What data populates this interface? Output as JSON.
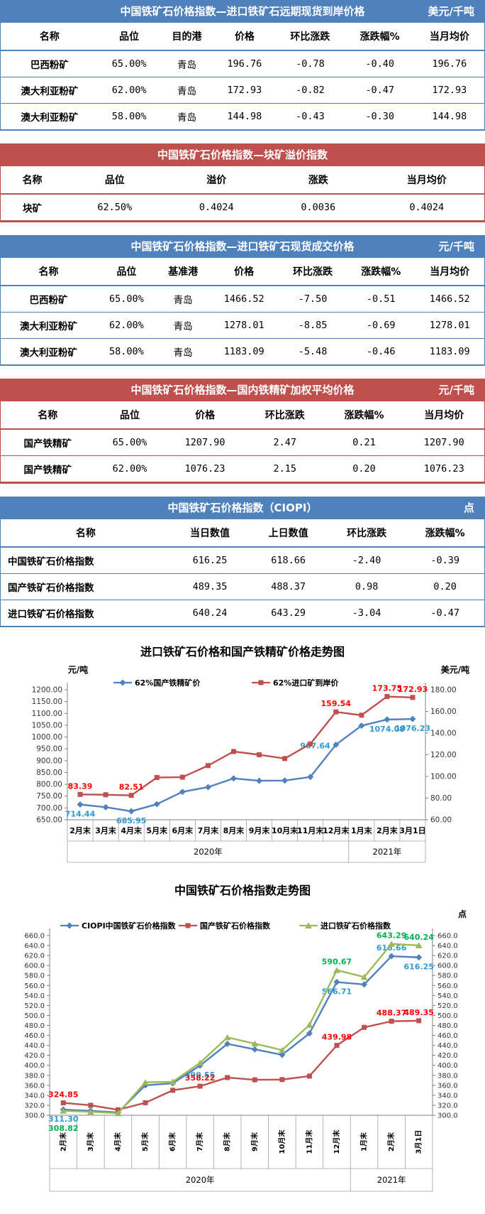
{
  "tables": [
    {
      "theme": "blue",
      "title": "中国铁矿石价格指数—进口铁矿石远期现货到岸价格",
      "unit": "美元/千吨",
      "columns": [
        "名称",
        "品位",
        "目的港",
        "价格",
        "环比涨跌",
        "涨跌幅%",
        "当月均价"
      ],
      "rows": [
        [
          "巴西粉矿",
          "65.00%",
          "青岛",
          "196.76",
          "-0.78",
          "-0.40",
          "196.76"
        ],
        [
          "澳大利亚粉矿",
          "62.00%",
          "青岛",
          "172.93",
          "-0.82",
          "-0.47",
          "172.93"
        ],
        [
          "澳大利亚粉矿",
          "58.00%",
          "青岛",
          "144.98",
          "-0.43",
          "-0.30",
          "144.98"
        ]
      ]
    },
    {
      "theme": "red",
      "title": "中国铁矿石价格指数—块矿溢价指数",
      "unit": "",
      "columns": [
        "名称",
        "品位",
        "溢价",
        "涨跌",
        "当月均价"
      ],
      "rows": [
        [
          "块矿",
          "62.50%",
          "0.4024",
          "0.0036",
          "0.4024"
        ]
      ]
    },
    {
      "theme": "blue",
      "title": "中国铁矿石价格指数—进口铁矿石现货成交价格",
      "unit": "元/千吨",
      "columns": [
        "名称",
        "品位",
        "基准港",
        "价格",
        "环比涨跌",
        "涨跌幅%",
        "当月均价"
      ],
      "rows": [
        [
          "巴西粉矿",
          "65.00%",
          "青岛",
          "1466.52",
          "-7.50",
          "-0.51",
          "1466.52"
        ],
        [
          "澳大利亚粉矿",
          "62.00%",
          "青岛",
          "1278.01",
          "-8.85",
          "-0.69",
          "1278.01"
        ],
        [
          "澳大利亚粉矿",
          "58.00%",
          "青岛",
          "1183.09",
          "-5.48",
          "-0.46",
          "1183.09"
        ]
      ]
    },
    {
      "theme": "red",
      "title": "中国铁矿石价格指数—国内铁精矿加权平均价格",
      "unit": "元/千吨",
      "columns": [
        "名称",
        "品位",
        "价格",
        "环比涨跌",
        "涨跌幅%",
        "当月均价"
      ],
      "rows": [
        [
          "国产铁精矿",
          "65.00%",
          "1207.90",
          "2.47",
          "0.21",
          "1207.90"
        ],
        [
          "国产铁精矿",
          "62.00%",
          "1076.23",
          "2.15",
          "0.20",
          "1076.23"
        ]
      ]
    },
    {
      "theme": "blue",
      "title": "中国铁矿石价格指数（CIOPI）",
      "unit": "点",
      "columns": [
        "名称",
        "当日数值",
        "上日数值",
        "环比涨跌",
        "涨跌幅%"
      ],
      "rows": [
        [
          "中国铁矿石价格指数",
          "616.25",
          "618.66",
          "-2.40",
          "-0.39"
        ],
        [
          "国产铁矿石价格指数",
          "489.35",
          "488.37",
          "0.98",
          "0.20"
        ],
        [
          "进口铁矿石价格指数",
          "640.24",
          "643.29",
          "-3.04",
          "-0.47"
        ]
      ]
    }
  ],
  "chart_data": [
    {
      "type": "line",
      "title": "进口铁矿石价格和国产铁精矿价格走势图",
      "unit_left": "元/吨",
      "unit_right": "美元/吨",
      "legend_position": "top",
      "grid": false,
      "categories": [
        "2月末",
        "3月末",
        "4月末",
        "5月末",
        "6月末",
        "7月末",
        "8月末",
        "9月末",
        "10月末",
        "11月末",
        "12月末",
        "1月末",
        "2月末",
        "3月1日"
      ],
      "year_groups": [
        {
          "label": "2020年",
          "span": 11
        },
        {
          "label": "2021年",
          "span": 3
        }
      ],
      "left_axis": {
        "min": 650,
        "max": 1200,
        "step": 50,
        "decimals": 2
      },
      "right_axis": {
        "min": 60,
        "max": 180,
        "step": 20,
        "decimals": 2
      },
      "series": [
        {
          "name": "62%国产铁精矿价",
          "axis": "left",
          "color": "#4F81BD",
          "label_color": "#2E9BD6",
          "marker": "diamond",
          "values": [
            714.44,
            703,
            685.95,
            716,
            768,
            788,
            825,
            815,
            816,
            831,
            967.64,
            1048,
            1074.08,
            1076.23
          ],
          "point_labels": [
            [
              0,
              "714.44",
              "below"
            ],
            [
              2,
              "685.95",
              "below"
            ],
            [
              10,
              "967.64",
              "left"
            ],
            [
              12,
              "1074.08",
              "below"
            ],
            [
              13,
              "1076.23",
              "below"
            ]
          ]
        },
        {
          "name": "62%进口矿到岸价",
          "axis": "right",
          "color": "#C0504D",
          "label_color": "#FF0000",
          "marker": "square",
          "values": [
            83.39,
            83.1,
            82.51,
            99,
            99.3,
            110,
            123,
            120,
            116.5,
            130,
            159.54,
            156.5,
            173.75,
            172.93
          ],
          "point_labels": [
            [
              0,
              "83.39",
              "above"
            ],
            [
              2,
              "82.51",
              "above"
            ],
            [
              10,
              "159.54",
              "above"
            ],
            [
              12,
              "173.75",
              "above"
            ],
            [
              13,
              "172.93",
              "above"
            ]
          ]
        }
      ]
    },
    {
      "type": "line",
      "title": "中国铁矿石价格指数走势图",
      "unit_right": "点",
      "legend_position": "top",
      "grid": false,
      "categories": [
        "2月末",
        "3月末",
        "4月末",
        "5月末",
        "6月末",
        "7月末",
        "8月末",
        "9月末",
        "10月末",
        "11月末",
        "12月末",
        "1月末",
        "2月末",
        "3月1日"
      ],
      "year_groups": [
        {
          "label": "2020年",
          "span": 11
        },
        {
          "label": "2021年",
          "span": 3
        }
      ],
      "left_axis": {
        "min": 300,
        "max": 660,
        "step": 20,
        "decimals": 1
      },
      "right_axis": {
        "min": 300,
        "max": 660,
        "step": 20,
        "decimals": 1
      },
      "series": [
        {
          "name": "CIOPI中国铁矿石价格指数",
          "axis": "left",
          "color": "#4F81BD",
          "label_color": "#2E9BD6",
          "marker": "diamond",
          "values": [
            311.3,
            309,
            305.5,
            360,
            364,
            399.55,
            443,
            432,
            421,
            464,
            566.71,
            562,
            618.66,
            616.25
          ],
          "point_labels": [
            [
              0,
              "311.30",
              "below"
            ],
            [
              5,
              "399.55",
              "below"
            ],
            [
              10,
              "566.71",
              "below"
            ],
            [
              12,
              "618.66",
              "above"
            ],
            [
              13,
              "616.25",
              "below"
            ]
          ]
        },
        {
          "name": "国产铁矿石价格指数",
          "axis": "left",
          "color": "#C0504D",
          "label_color": "#FF0000",
          "marker": "square",
          "values": [
            324.85,
            320,
            311,
            325,
            350,
            358.22,
            375.5,
            371,
            371.5,
            378.5,
            439.98,
            476,
            488.37,
            489.35
          ],
          "point_labels": [
            [
              0,
              "324.85",
              "above"
            ],
            [
              5,
              "358.22",
              "above"
            ],
            [
              10,
              "439.98",
              "above"
            ],
            [
              12,
              "488.37",
              "above"
            ],
            [
              13,
              "489.35",
              "above"
            ]
          ]
        },
        {
          "name": "进口铁矿石价格指数",
          "axis": "left",
          "color": "#9BBB59",
          "label_color": "#00B050",
          "marker": "triangle",
          "values": [
            308.82,
            307,
            304,
            366,
            367,
            405,
            456,
            443.5,
            430.5,
            481,
            590.67,
            577,
            643.29,
            640.24
          ],
          "point_labels": [
            [
              0,
              "308.82",
              "below2"
            ],
            [
              10,
              "590.67",
              "above"
            ],
            [
              12,
              "643.29",
              "above"
            ],
            [
              13,
              "640.24",
              "above"
            ]
          ]
        }
      ]
    }
  ]
}
